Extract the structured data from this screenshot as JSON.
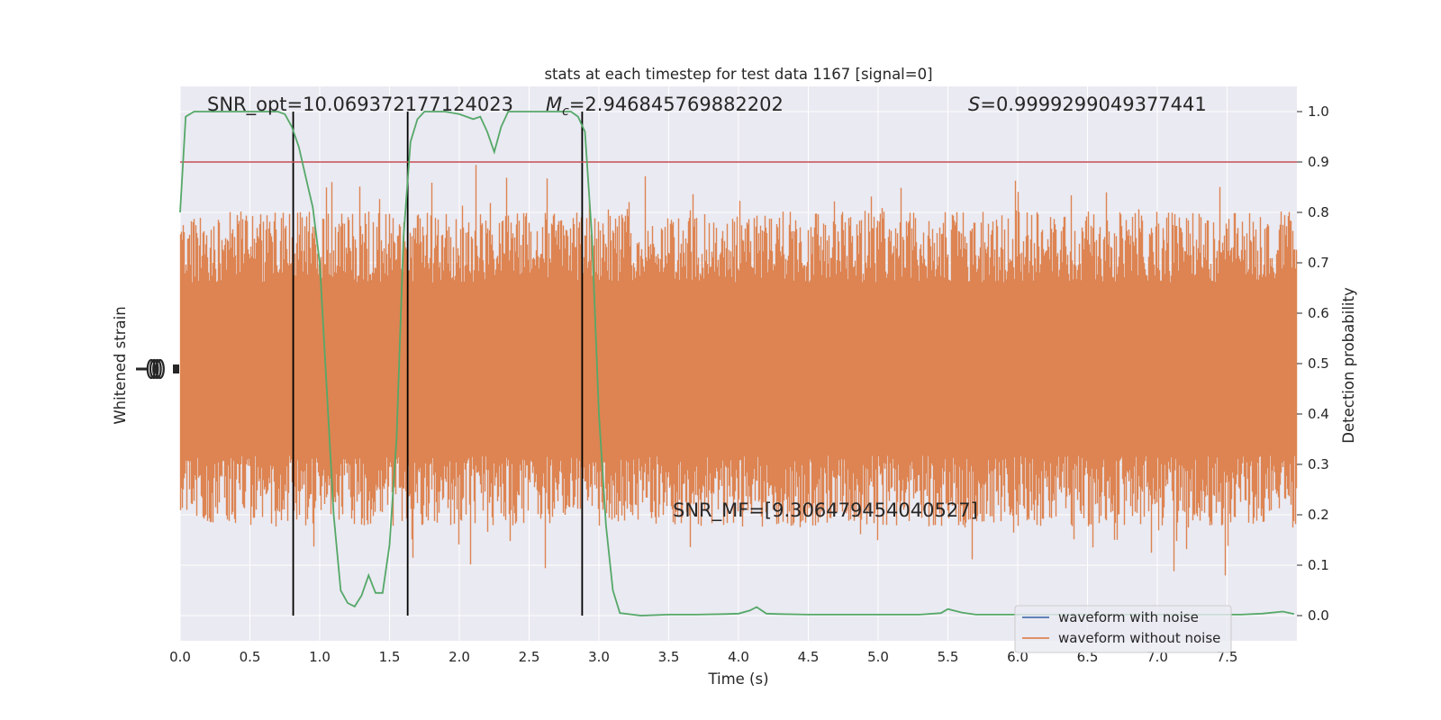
{
  "colors": {
    "background": "#eaeaf2",
    "grid": "#ffffff",
    "waveform_with_noise": "#4c72b0",
    "waveform_without_noise": "#dd8452",
    "detection_probability": "#55a868",
    "threshold": "#c44e52",
    "marker": "#000000"
  },
  "chart_data": {
    "type": "line",
    "title": "stats at each timestep for test data 1167 [signal=0]",
    "xlabel": "Time (s)",
    "ylabel_left": "Whitened strain",
    "ylabel_right": "Detection probability",
    "xlim": [
      0.0,
      8.0
    ],
    "ylim_right": [
      -0.05,
      1.05
    ],
    "x_ticks": [
      "0.0",
      "0.5",
      "1.0",
      "1.5",
      "2.0",
      "2.5",
      "3.0",
      "3.5",
      "4.0",
      "4.5",
      "5.0",
      "5.5",
      "6.0",
      "6.5",
      "7.0",
      "7.5"
    ],
    "y_ticks_right": [
      "0.0",
      "0.1",
      "0.2",
      "0.3",
      "0.4",
      "0.5",
      "0.6",
      "0.7",
      "0.8",
      "0.9",
      "1.0"
    ],
    "grid": true,
    "legend_position": "bottom-right",
    "annotations": {
      "snr_opt": "SNR_opt=10.069372177124023",
      "mc_symbol": "M",
      "mc_subscript": "c",
      "mc_value": "=2.946845769882202",
      "s_symbol": "S",
      "s_value": "=0.9999299049377441",
      "snr_mf": "SNR_MF=[9.306479454040527]"
    },
    "threshold": 0.9,
    "vertical_markers": [
      0.81,
      1.63,
      2.88
    ],
    "series": [
      {
        "name": "waveform with noise",
        "style": "line",
        "values": []
      },
      {
        "name": "waveform without noise",
        "style": "noise-band",
        "values": []
      },
      {
        "name": "",
        "axis": "right",
        "x": [
          0.0,
          0.04,
          0.1,
          0.2,
          0.3,
          0.4,
          0.5,
          0.6,
          0.7,
          0.75,
          0.8,
          0.85,
          0.9,
          0.95,
          1.0,
          1.05,
          1.1,
          1.15,
          1.2,
          1.25,
          1.3,
          1.35,
          1.4,
          1.45,
          1.5,
          1.55,
          1.6,
          1.65,
          1.7,
          1.75,
          1.8,
          1.9,
          2.0,
          2.1,
          2.15,
          2.2,
          2.25,
          2.3,
          2.35,
          2.4,
          2.5,
          2.6,
          2.7,
          2.8,
          2.85,
          2.9,
          2.95,
          3.0,
          3.05,
          3.1,
          3.15,
          3.3,
          3.5,
          3.7,
          3.9,
          4.0,
          4.08,
          4.13,
          4.2,
          4.3,
          4.5,
          4.7,
          5.0,
          5.3,
          5.45,
          5.5,
          5.6,
          5.7,
          5.9,
          6.2,
          6.5,
          6.8,
          7.1,
          7.4,
          7.6,
          7.75,
          7.9,
          7.98
        ],
        "values": [
          0.8,
          0.99,
          1.0,
          1.0,
          1.0,
          1.0,
          1.0,
          1.0,
          1.0,
          0.995,
          0.97,
          0.93,
          0.87,
          0.81,
          0.7,
          0.45,
          0.2,
          0.05,
          0.025,
          0.018,
          0.04,
          0.08,
          0.045,
          0.045,
          0.14,
          0.35,
          0.75,
          0.94,
          0.985,
          1.0,
          1.0,
          1.0,
          0.995,
          0.985,
          0.99,
          0.96,
          0.92,
          0.97,
          1.0,
          1.0,
          1.0,
          1.0,
          1.0,
          1.0,
          0.99,
          0.96,
          0.75,
          0.4,
          0.18,
          0.05,
          0.005,
          0.0,
          0.002,
          0.002,
          0.003,
          0.004,
          0.01,
          0.017,
          0.004,
          0.003,
          0.002,
          0.002,
          0.002,
          0.002,
          0.005,
          0.013,
          0.006,
          0.002,
          0.002,
          0.002,
          0.002,
          0.002,
          0.002,
          0.002,
          0.002,
          0.004,
          0.008,
          0.003
        ]
      }
    ]
  }
}
